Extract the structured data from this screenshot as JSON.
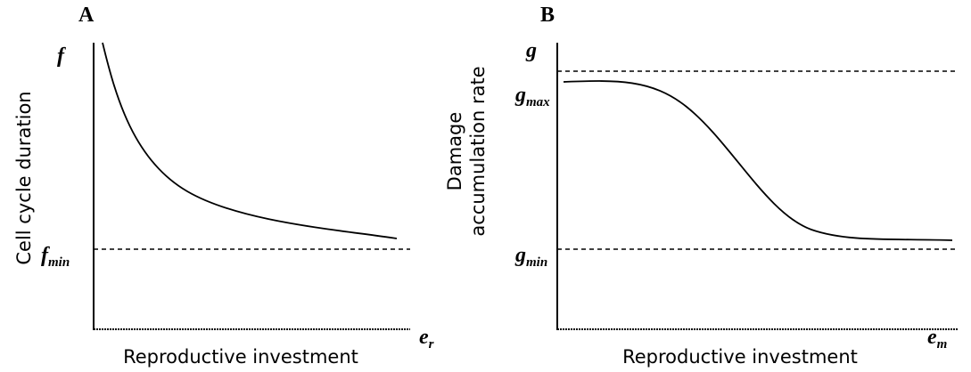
{
  "panels": [
    {
      "label": "A",
      "y_symbol": "f",
      "y_min": {
        "base": "f",
        "sub": "min"
      },
      "y_axis_label": [
        "Cell cycle duration"
      ],
      "x_axis_label": "Reproductive investment",
      "x_symbol": {
        "base": "e",
        "sub": "r"
      }
    },
    {
      "label": "B",
      "y_symbol": "g",
      "y_max": {
        "base": "g",
        "sub": "max"
      },
      "y_min": {
        "base": "g",
        "sub": "min"
      },
      "y_axis_label": [
        "Damage",
        "accumulation rate"
      ],
      "x_axis_label": "Reproductive investment",
      "x_symbol": {
        "base": "e",
        "sub": "m"
      }
    }
  ]
}
